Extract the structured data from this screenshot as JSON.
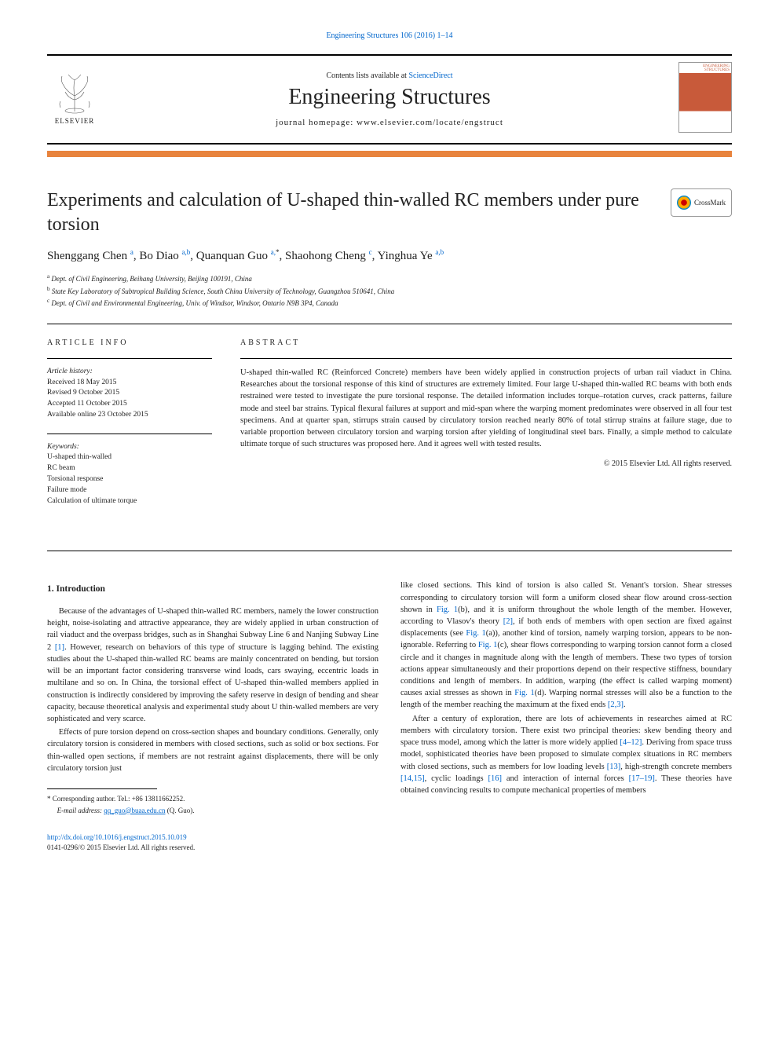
{
  "top_link": "Engineering Structures 106 (2016) 1–14",
  "header": {
    "contents_prefix": "Contents lists available at ",
    "contents_link": "ScienceDirect",
    "journal_name": "Engineering Structures",
    "homepage_prefix": "journal homepage: ",
    "homepage_url": "www.elsevier.com/locate/engstruct",
    "elsevier_label": "ELSEVIER",
    "cover_text_line1": "ENGINEERING",
    "cover_text_line2": "STRUCTURES"
  },
  "title": "Experiments and calculation of U-shaped thin-walled RC members under pure torsion",
  "crossmark_label": "CrossMark",
  "authors_html_parts": [
    {
      "name": "Shenggang Chen",
      "sup": "a"
    },
    {
      "name": "Bo Diao",
      "sup": "a,b"
    },
    {
      "name": "Quanquan Guo",
      "sup": "a,*"
    },
    {
      "name": "Shaohong Cheng",
      "sup": "c"
    },
    {
      "name": "Yinghua Ye",
      "sup": "a,b"
    }
  ],
  "affiliations": [
    {
      "sup": "a",
      "text": "Dept. of Civil Engineering, Beihang University, Beijing 100191, China"
    },
    {
      "sup": "b",
      "text": "State Key Laboratory of Subtropical Building Science, South China University of Technology, Guangzhou 510641, China"
    },
    {
      "sup": "c",
      "text": "Dept. of Civil and Environmental Engineering, Univ. of Windsor, Windsor, Ontario N9B 3P4, Canada"
    }
  ],
  "info": {
    "label": "ARTICLE INFO",
    "history_label": "Article history:",
    "history": [
      "Received 18 May 2015",
      "Revised 9 October 2015",
      "Accepted 11 October 2015",
      "Available online 23 October 2015"
    ],
    "keywords_label": "Keywords:",
    "keywords": [
      "U-shaped thin-walled",
      "RC beam",
      "Torsional response",
      "Failure mode",
      "Calculation of ultimate torque"
    ]
  },
  "abstract": {
    "label": "ABSTRACT",
    "text": "U-shaped thin-walled RC (Reinforced Concrete) members have been widely applied in construction projects of urban rail viaduct in China. Researches about the torsional response of this kind of structures are extremely limited. Four large U-shaped thin-walled RC beams with both ends restrained were tested to investigate the pure torsional response. The detailed information includes torque–rotation curves, crack patterns, failure mode and steel bar strains. Typical flexural failures at support and mid-span where the warping moment predominates were observed in all four test specimens. And at quarter span, stirrups strain caused by circulatory torsion reached nearly 80% of total stirrup strains at failure stage, due to variable proportion between circulatory torsion and warping torsion after yielding of longitudinal steel bars. Finally, a simple method to calculate ultimate torque of such structures was proposed here. And it agrees well with tested results.",
    "copyright": "© 2015 Elsevier Ltd. All rights reserved."
  },
  "body": {
    "heading1": "1. Introduction",
    "p1": "Because of the advantages of U-shaped thin-walled RC members, namely the lower construction height, noise-isolating and attractive appearance, they are widely applied in urban construction of rail viaduct and the overpass bridges, such as in Shanghai Subway Line 6 and Nanjing Subway Line 2 [1]. However, research on behaviors of this type of structure is lagging behind. The existing studies about the U-shaped thin-walled RC beams are mainly concentrated on bending, but torsion will be an important factor considering transverse wind loads, cars swaying, eccentric loads in multilane and so on. In China, the torsional effect of U-shaped thin-walled members applied in construction is indirectly considered by improving the safety reserve in design of bending and shear capacity, because theoretical analysis and experimental study about U thin-walled members are very sophisticated and very scarce.",
    "p2": "Effects of pure torsion depend on cross-section shapes and boundary conditions. Generally, only circulatory torsion is considered in members with closed sections, such as solid or box sections. For thin-walled open sections, if members are not restraint against displacements, there will be only circulatory torsion just",
    "p3": "like closed sections. This kind of torsion is also called St. Venant's torsion. Shear stresses corresponding to circulatory torsion will form a uniform closed shear flow around cross-section shown in Fig. 1(b), and it is uniform throughout the whole length of the member. However, according to Vlasov's theory [2], if both ends of members with open section are fixed against displacements (see Fig. 1(a)), another kind of torsion, namely warping torsion, appears to be non-ignorable. Referring to Fig. 1(c), shear flows corresponding to warping torsion cannot form a closed circle and it changes in magnitude along with the length of members. These two types of torsion actions appear simultaneously and their proportions depend on their respective stiffness, boundary conditions and length of members. In addition, warping (the effect is called warping moment) causes axial stresses as shown in Fig. 1(d). Warping normal stresses will also be a function to the length of the member reaching the maximum at the fixed ends [2,3].",
    "p4": "After a century of exploration, there are lots of achievements in researches aimed at RC members with circulatory torsion. There exist two principal theories: skew bending theory and space truss model, among which the latter is more widely applied [4–12]. Deriving from space truss model, sophisticated theories have been proposed to simulate complex situations in RC members with closed sections, such as members for low loading levels [13], high-strength concrete members [14,15], cyclic loadings [16] and interaction of internal forces [17–19]. These theories have obtained convincing results to compute mechanical properties of members",
    "refs_in_p1": "[1]",
    "fig1b": "Fig. 1",
    "ref2": "[2]",
    "fig1a": "Fig. 1",
    "fig1c": "Fig. 1",
    "fig1d": "Fig. 1",
    "ref23": "[2,3]",
    "ref412": "[4–12]",
    "ref13": "[13]",
    "ref1415": "[14,15]",
    "ref16": "[16]",
    "ref1719": "[17–19]"
  },
  "footnote": {
    "corresponding": "Corresponding author. Tel.: +86 13811662252.",
    "email_label": "E-mail address: ",
    "email": "qq_guo@buaa.edu.cn",
    "email_suffix": " (Q. Guo).",
    "asterisk": "*"
  },
  "doi": {
    "url": "http://dx.doi.org/10.1016/j.engstruct.2015.10.019",
    "issn_line": "0141-0296/© 2015 Elsevier Ltd. All rights reserved."
  },
  "colors": {
    "link": "#0066cc",
    "orange": "#e8833d",
    "cover_orange": "#c85a3a"
  }
}
